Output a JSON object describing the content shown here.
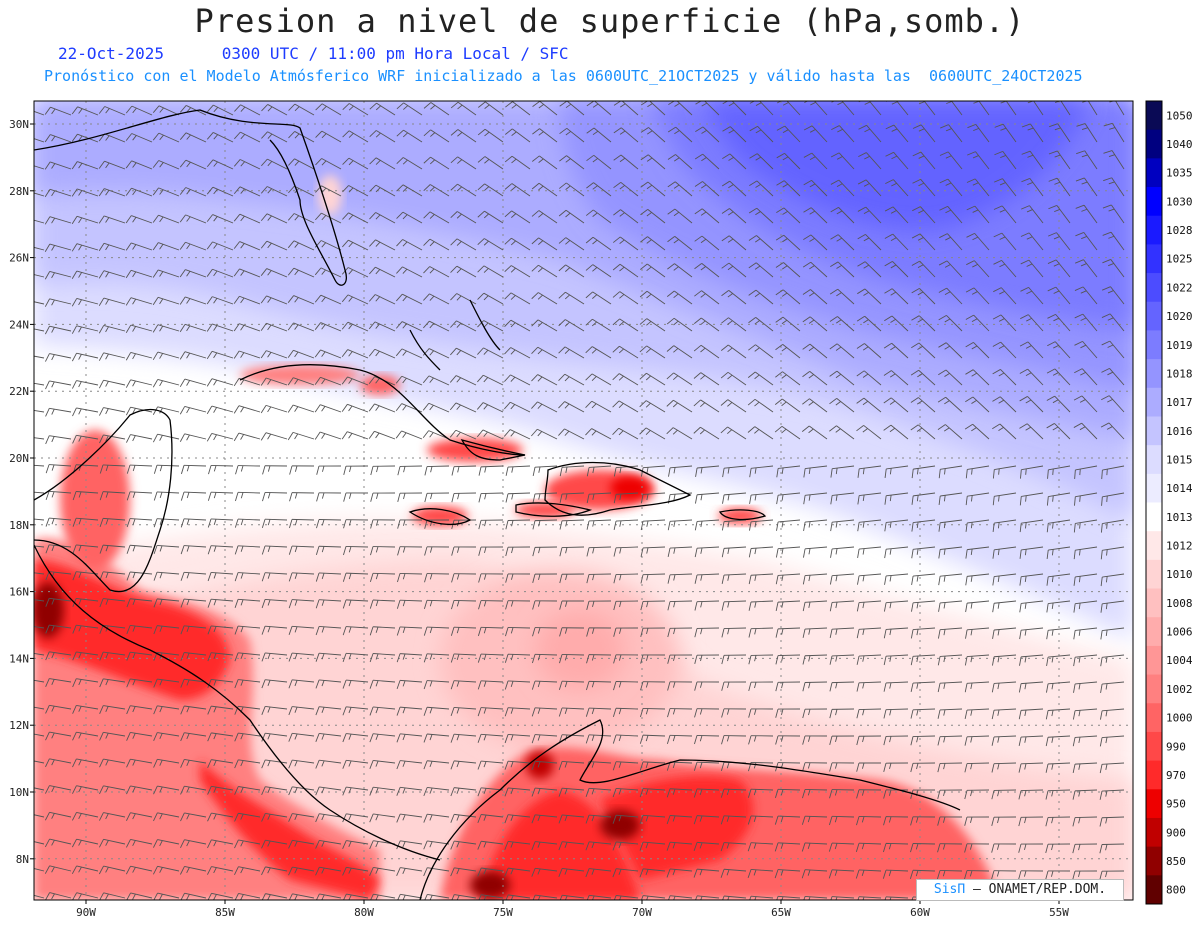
{
  "title": "Presion a nivel de superficie (hPa,somb.)",
  "date": "22-Oct-2025",
  "time_line": "0300 UTC / 11:00 pm Hora Local / SFC",
  "forecast_line": "Pronóstico con el Modelo Atmósferico WRF inicializado a las 0600UTC_21OCT2025 y válido hasta las  0600UTC_24OCT2025",
  "credit": {
    "logo": "SisΠ",
    "text": "– ONAMET/REP.DOM."
  },
  "lat_labels": [
    "30N",
    "28N",
    "26N",
    "24N",
    "22N",
    "20N",
    "18N",
    "16N",
    "14N",
    "12N",
    "10N",
    "8N"
  ],
  "lon_labels": [
    "90W",
    "85W",
    "80W",
    "75W",
    "70W",
    "65W",
    "60W",
    "55W"
  ],
  "colorbar": {
    "labels": [
      "1050",
      "1040",
      "1035",
      "1030",
      "1028",
      "1025",
      "1022",
      "1020",
      "1019",
      "1018",
      "1017",
      "1016",
      "1015",
      "1014",
      "1013",
      "1012",
      "1010",
      "1008",
      "1006",
      "1004",
      "1002",
      "1000",
      "990",
      "970",
      "950",
      "900",
      "850",
      "800"
    ],
    "colors": [
      "#0a0a55",
      "#000080",
      "#0000c0",
      "#0000ff",
      "#1a1aff",
      "#3232ff",
      "#4c4cff",
      "#6464ff",
      "#7c7cff",
      "#9494ff",
      "#acacff",
      "#c4c4ff",
      "#dcdcff",
      "#ececff",
      "#ffffff",
      "#ffe8e8",
      "#ffd4d4",
      "#ffc0c0",
      "#ffacac",
      "#ff9696",
      "#ff8080",
      "#ff6464",
      "#ff4848",
      "#ff2a2a",
      "#ee0000",
      "#c00000",
      "#900000",
      "#600000"
    ]
  }
}
